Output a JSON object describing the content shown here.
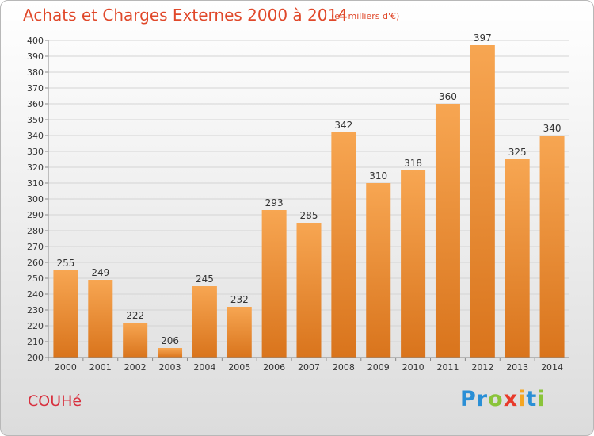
{
  "title": "Achats et Charges Externes 2000 à 2014",
  "subtitle": "(en milliers d'€)",
  "city": "COUHé",
  "logo": {
    "letters": [
      {
        "ch": "P",
        "color": "#2a8fd6"
      },
      {
        "ch": "r",
        "color": "#2a8fd6"
      },
      {
        "ch": "o",
        "color": "#8ac43a"
      },
      {
        "ch": "x",
        "color": "#e83a2a"
      },
      {
        "ch": "i",
        "color": "#f5a623"
      },
      {
        "ch": "t",
        "color": "#2a8fd6"
      },
      {
        "ch": "i",
        "color": "#8ac43a"
      }
    ]
  },
  "colors": {
    "bar_top": "#f7a652",
    "bar_bottom": "#d9741c",
    "title": "#e0482a",
    "city": "#d8303e"
  },
  "chart_data": {
    "type": "bar",
    "categories": [
      "2000",
      "2001",
      "2002",
      "2003",
      "2004",
      "2005",
      "2006",
      "2007",
      "2008",
      "2009",
      "2010",
      "2011",
      "2012",
      "2013",
      "2014"
    ],
    "values": [
      255,
      249,
      222,
      206,
      245,
      232,
      293,
      285,
      342,
      310,
      318,
      360,
      397,
      325,
      340
    ],
    "ylim": [
      200,
      400
    ],
    "yticks": [
      200,
      210,
      220,
      230,
      240,
      250,
      260,
      270,
      280,
      290,
      300,
      310,
      320,
      330,
      340,
      350,
      360,
      370,
      380,
      390,
      400
    ],
    "grid": true,
    "legend": "none"
  }
}
